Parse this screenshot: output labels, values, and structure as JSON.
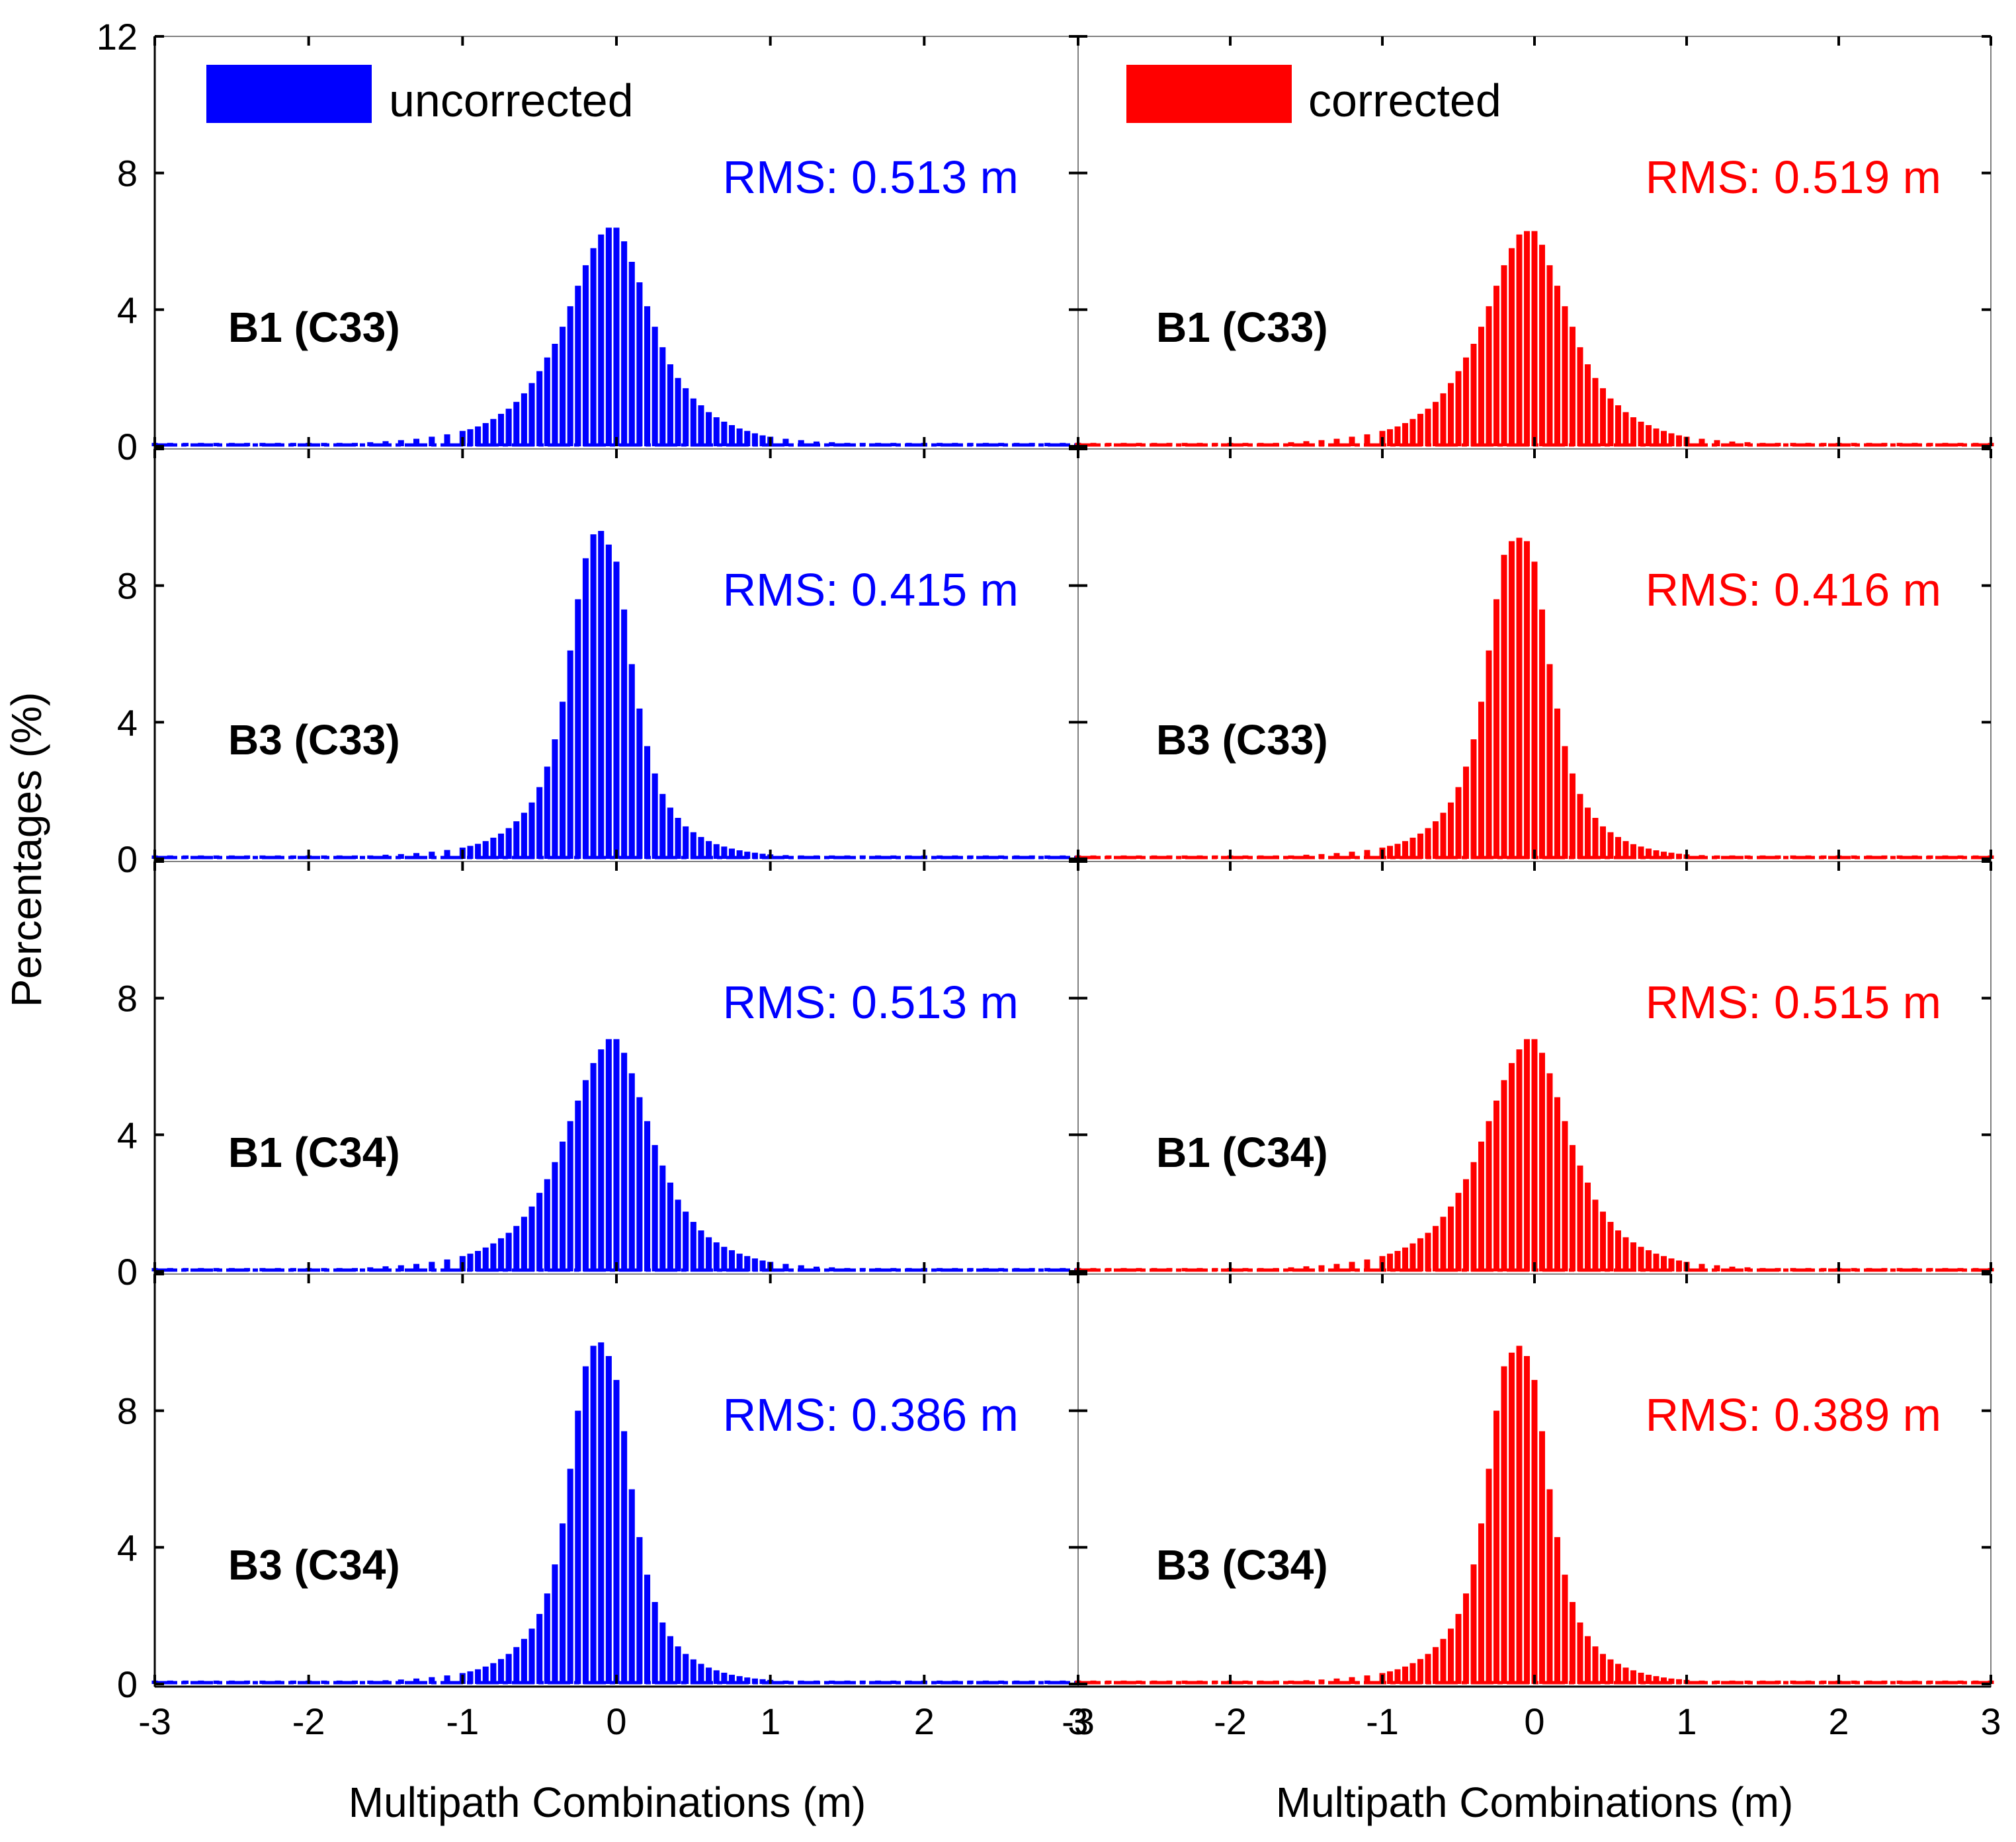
{
  "chart_data": {
    "type": "bar",
    "title": "",
    "xlabel": "Multipath Combinations (m)",
    "ylabel": "Percentages (%)",
    "xlim": [
      -3,
      3
    ],
    "ylim": [
      0,
      12
    ],
    "x_ticks": [
      "-3",
      "-2",
      "-1",
      "0",
      "1",
      "2",
      "3"
    ],
    "y_ticks": [
      "0",
      "4",
      "8",
      "12"
    ],
    "bin_centers": [
      -3.0,
      -2.9,
      -2.8,
      -2.7,
      -2.6,
      -2.5,
      -2.4,
      -2.3,
      -2.2,
      -2.1,
      -2.0,
      -1.9,
      -1.8,
      -1.7,
      -1.6,
      -1.5,
      -1.4,
      -1.3,
      -1.2,
      -1.1,
      -1.0,
      -0.95,
      -0.9,
      -0.85,
      -0.8,
      -0.75,
      -0.7,
      -0.65,
      -0.6,
      -0.55,
      -0.5,
      -0.45,
      -0.4,
      -0.35,
      -0.3,
      -0.25,
      -0.2,
      -0.15,
      -0.1,
      -0.05,
      0.0,
      0.05,
      0.1,
      0.15,
      0.2,
      0.25,
      0.3,
      0.35,
      0.4,
      0.45,
      0.5,
      0.55,
      0.6,
      0.65,
      0.7,
      0.75,
      0.8,
      0.85,
      0.9,
      0.95,
      1.0,
      1.1,
      1.2,
      1.3,
      1.4,
      1.5,
      1.6,
      1.7,
      1.8,
      1.9,
      2.0,
      2.1,
      2.2,
      2.3,
      2.4,
      2.5,
      2.6,
      2.7,
      2.8,
      2.9,
      3.0
    ],
    "bin_width": 0.05,
    "legend": {
      "uncorrected": "uncorrected",
      "corrected": "corrected",
      "placement": "top-left"
    },
    "colors": {
      "uncorrected": "#0000ff",
      "corrected": "#ff0000",
      "axis": "#000000",
      "frame": "#808080"
    },
    "panels": [
      {
        "label": "B1 (C33)",
        "series": [
          {
            "name": "uncorrected",
            "rms": "RMS: 0.513 m",
            "values": [
              0.1,
              0.1,
              0.1,
              0.1,
              0.1,
              0.1,
              0.1,
              0.1,
              0.1,
              0.1,
              0.1,
              0.1,
              0.1,
              0.1,
              0.12,
              0.15,
              0.18,
              0.22,
              0.28,
              0.35,
              0.45,
              0.5,
              0.58,
              0.68,
              0.8,
              0.95,
              1.1,
              1.3,
              1.55,
              1.85,
              2.2,
              2.6,
              3.0,
              3.5,
              4.1,
              4.7,
              5.3,
              5.8,
              6.2,
              6.4,
              6.4,
              6.0,
              5.4,
              4.8,
              4.1,
              3.5,
              2.9,
              2.4,
              2.0,
              1.7,
              1.4,
              1.2,
              1.0,
              0.85,
              0.72,
              0.62,
              0.52,
              0.45,
              0.38,
              0.32,
              0.28,
              0.22,
              0.18,
              0.14,
              0.12,
              0.1,
              0.1,
              0.1,
              0.1,
              0.1,
              0.1,
              0.1,
              0.1,
              0.1,
              0.1,
              0.1,
              0.1,
              0.1,
              0.1,
              0.1,
              0.1
            ]
          },
          {
            "name": "corrected",
            "rms": "RMS: 0.519 m",
            "values": [
              0.1,
              0.1,
              0.1,
              0.1,
              0.1,
              0.1,
              0.1,
              0.1,
              0.1,
              0.1,
              0.1,
              0.1,
              0.1,
              0.1,
              0.12,
              0.15,
              0.18,
              0.22,
              0.28,
              0.35,
              0.45,
              0.5,
              0.58,
              0.68,
              0.8,
              0.95,
              1.1,
              1.3,
              1.55,
              1.85,
              2.2,
              2.6,
              3.0,
              3.5,
              4.1,
              4.7,
              5.3,
              5.8,
              6.2,
              6.3,
              6.3,
              5.9,
              5.3,
              4.7,
              4.1,
              3.5,
              2.9,
              2.4,
              2.0,
              1.7,
              1.4,
              1.2,
              1.0,
              0.85,
              0.72,
              0.62,
              0.52,
              0.45,
              0.38,
              0.32,
              0.28,
              0.22,
              0.18,
              0.14,
              0.12,
              0.1,
              0.1,
              0.1,
              0.1,
              0.1,
              0.1,
              0.1,
              0.1,
              0.1,
              0.1,
              0.1,
              0.1,
              0.1,
              0.1,
              0.1,
              0.1
            ]
          }
        ]
      },
      {
        "label": "B3 (C33)",
        "series": [
          {
            "name": "uncorrected",
            "rms": "RMS: 0.415 m",
            "values": [
              0.1,
              0.1,
              0.1,
              0.1,
              0.1,
              0.1,
              0.1,
              0.1,
              0.1,
              0.1,
              0.1,
              0.1,
              0.1,
              0.1,
              0.1,
              0.12,
              0.14,
              0.17,
              0.21,
              0.26,
              0.33,
              0.38,
              0.44,
              0.52,
              0.62,
              0.74,
              0.9,
              1.1,
              1.35,
              1.65,
              2.1,
              2.7,
              3.5,
              4.6,
              6.1,
              7.6,
              8.8,
              9.5,
              9.6,
              9.2,
              8.7,
              7.3,
              5.7,
              4.4,
              3.3,
              2.5,
              1.9,
              1.5,
              1.2,
              0.95,
              0.78,
              0.64,
              0.52,
              0.43,
              0.36,
              0.3,
              0.25,
              0.21,
              0.18,
              0.15,
              0.13,
              0.11,
              0.1,
              0.1,
              0.1,
              0.1,
              0.1,
              0.1,
              0.1,
              0.1,
              0.1,
              0.1,
              0.1,
              0.1,
              0.1,
              0.1,
              0.1,
              0.1,
              0.1,
              0.1,
              0.1
            ]
          },
          {
            "name": "corrected",
            "rms": "RMS: 0.416 m",
            "values": [
              0.1,
              0.1,
              0.1,
              0.1,
              0.1,
              0.1,
              0.1,
              0.1,
              0.1,
              0.1,
              0.1,
              0.1,
              0.1,
              0.1,
              0.1,
              0.12,
              0.14,
              0.17,
              0.21,
              0.26,
              0.33,
              0.38,
              0.44,
              0.52,
              0.62,
              0.74,
              0.9,
              1.1,
              1.35,
              1.65,
              2.1,
              2.7,
              3.5,
              4.6,
              6.1,
              7.6,
              8.9,
              9.3,
              9.4,
              9.3,
              8.7,
              7.3,
              5.7,
              4.4,
              3.3,
              2.5,
              1.9,
              1.5,
              1.2,
              0.95,
              0.78,
              0.64,
              0.52,
              0.43,
              0.36,
              0.3,
              0.25,
              0.21,
              0.18,
              0.15,
              0.13,
              0.11,
              0.1,
              0.1,
              0.1,
              0.1,
              0.1,
              0.1,
              0.1,
              0.1,
              0.1,
              0.1,
              0.1,
              0.1,
              0.1,
              0.1,
              0.1,
              0.1,
              0.1,
              0.1,
              0.1
            ]
          }
        ]
      },
      {
        "label": "B1 (C34)",
        "series": [
          {
            "name": "uncorrected",
            "rms": "RMS: 0.513 m",
            "values": [
              0.1,
              0.1,
              0.1,
              0.1,
              0.1,
              0.1,
              0.1,
              0.1,
              0.1,
              0.1,
              0.1,
              0.1,
              0.1,
              0.1,
              0.12,
              0.15,
              0.18,
              0.22,
              0.28,
              0.35,
              0.45,
              0.52,
              0.6,
              0.7,
              0.82,
              0.97,
              1.13,
              1.33,
              1.6,
              1.9,
              2.3,
              2.7,
              3.2,
              3.8,
              4.4,
              5.0,
              5.6,
              6.1,
              6.5,
              6.8,
              6.8,
              6.4,
              5.8,
              5.1,
              4.4,
              3.7,
              3.1,
              2.6,
              2.1,
              1.75,
              1.45,
              1.2,
              1.0,
              0.85,
              0.72,
              0.62,
              0.52,
              0.45,
              0.38,
              0.32,
              0.28,
              0.22,
              0.18,
              0.14,
              0.12,
              0.1,
              0.1,
              0.1,
              0.1,
              0.1,
              0.1,
              0.1,
              0.1,
              0.1,
              0.1,
              0.1,
              0.1,
              0.1,
              0.1,
              0.1,
              0.1
            ]
          },
          {
            "name": "corrected",
            "rms": "RMS: 0.515 m",
            "values": [
              0.1,
              0.1,
              0.1,
              0.1,
              0.1,
              0.1,
              0.1,
              0.1,
              0.1,
              0.1,
              0.1,
              0.1,
              0.1,
              0.1,
              0.12,
              0.15,
              0.18,
              0.22,
              0.28,
              0.35,
              0.45,
              0.52,
              0.6,
              0.7,
              0.82,
              0.97,
              1.13,
              1.33,
              1.6,
              1.9,
              2.3,
              2.7,
              3.2,
              3.8,
              4.4,
              5.0,
              5.6,
              6.1,
              6.5,
              6.8,
              6.8,
              6.4,
              5.8,
              5.1,
              4.4,
              3.7,
              3.1,
              2.6,
              2.1,
              1.75,
              1.45,
              1.2,
              1.0,
              0.85,
              0.72,
              0.62,
              0.52,
              0.45,
              0.38,
              0.32,
              0.28,
              0.22,
              0.18,
              0.14,
              0.12,
              0.1,
              0.1,
              0.1,
              0.1,
              0.1,
              0.1,
              0.1,
              0.1,
              0.1,
              0.1,
              0.1,
              0.1,
              0.1,
              0.1,
              0.1,
              0.1
            ]
          }
        ]
      },
      {
        "label": "B3 (C34)",
        "series": [
          {
            "name": "uncorrected",
            "rms": "RMS: 0.386 m",
            "values": [
              0.1,
              0.1,
              0.1,
              0.1,
              0.1,
              0.1,
              0.1,
              0.1,
              0.1,
              0.1,
              0.1,
              0.1,
              0.1,
              0.1,
              0.1,
              0.11,
              0.13,
              0.16,
              0.2,
              0.25,
              0.32,
              0.37,
              0.43,
              0.51,
              0.61,
              0.73,
              0.88,
              1.08,
              1.32,
              1.62,
              2.05,
              2.65,
              3.5,
              4.7,
              6.3,
              8.0,
              9.3,
              9.9,
              10.0,
              9.6,
              8.9,
              7.4,
              5.7,
              4.3,
              3.2,
              2.4,
              1.8,
              1.4,
              1.1,
              0.88,
              0.72,
              0.59,
              0.48,
              0.4,
              0.33,
              0.27,
              0.23,
              0.19,
              0.16,
              0.14,
              0.12,
              0.1,
              0.1,
              0.1,
              0.1,
              0.1,
              0.1,
              0.1,
              0.1,
              0.1,
              0.1,
              0.1,
              0.1,
              0.1,
              0.1,
              0.1,
              0.1,
              0.1,
              0.1,
              0.1,
              0.1
            ]
          },
          {
            "name": "corrected",
            "rms": "RMS: 0.389 m",
            "values": [
              0.1,
              0.1,
              0.1,
              0.1,
              0.1,
              0.1,
              0.1,
              0.1,
              0.1,
              0.1,
              0.1,
              0.1,
              0.1,
              0.1,
              0.1,
              0.11,
              0.13,
              0.16,
              0.2,
              0.25,
              0.32,
              0.37,
              0.43,
              0.51,
              0.61,
              0.73,
              0.88,
              1.08,
              1.32,
              1.62,
              2.05,
              2.65,
              3.5,
              4.7,
              6.3,
              8.0,
              9.3,
              9.7,
              9.9,
              9.6,
              8.9,
              7.4,
              5.7,
              4.3,
              3.2,
              2.4,
              1.8,
              1.4,
              1.1,
              0.88,
              0.72,
              0.59,
              0.48,
              0.4,
              0.33,
              0.27,
              0.23,
              0.19,
              0.16,
              0.14,
              0.12,
              0.1,
              0.1,
              0.1,
              0.1,
              0.1,
              0.1,
              0.1,
              0.1,
              0.1,
              0.1,
              0.1,
              0.1,
              0.1,
              0.1,
              0.1,
              0.1,
              0.1,
              0.1,
              0.1,
              0.1
            ]
          }
        ]
      }
    ]
  }
}
